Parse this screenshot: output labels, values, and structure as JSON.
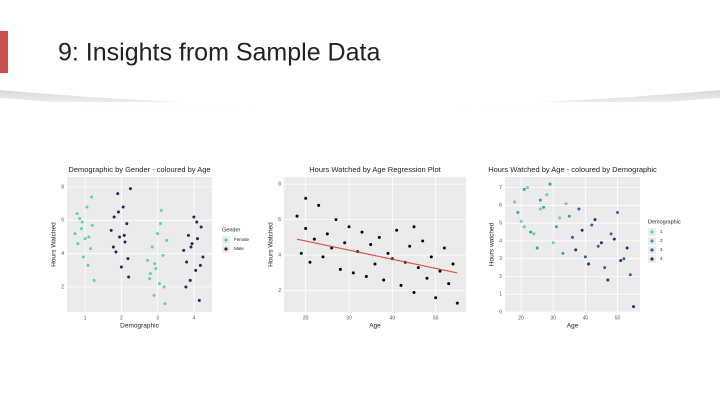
{
  "slide": {
    "title": "9: Insights from Sample Data"
  },
  "chart_data": [
    {
      "type": "scatter",
      "title": "Demographic by Gender - coloured by Age",
      "xlabel": "Demographic",
      "ylabel": "Hours Watched",
      "xlim": [
        0.5,
        4.5
      ],
      "xticks": [
        1,
        2,
        3,
        4
      ],
      "ylim": [
        0.5,
        8.6
      ],
      "yticks": [
        2,
        4,
        6,
        8
      ],
      "grid": true,
      "legend_title": "Gender",
      "series": [
        {
          "name": "Female",
          "color": "#5fd0a8",
          "x": [
            0.72,
            0.8,
            0.85,
            0.9,
            0.95,
            1.0,
            1.05,
            1.1,
            1.15,
            1.2,
            1.25,
            0.78,
            0.92,
            1.08,
            1.18,
            2.72,
            2.8,
            2.85,
            2.9,
            2.95,
            3.0,
            3.05,
            3.1,
            3.15,
            3.2,
            3.25,
            2.78,
            2.92,
            3.08,
            3.18
          ],
          "values": [
            5.2,
            4.6,
            6.1,
            5.5,
            3.8,
            4.9,
            6.8,
            5.0,
            4.3,
            5.7,
            2.4,
            6.4,
            5.9,
            3.3,
            7.4,
            3.6,
            2.8,
            4.4,
            1.5,
            3.1,
            5.2,
            2.2,
            6.6,
            3.9,
            1.0,
            4.8,
            2.5,
            3.4,
            5.8,
            2.0
          ]
        },
        {
          "name": "Male",
          "color": "#2e2150",
          "x": [
            1.72,
            1.8,
            1.85,
            1.9,
            1.95,
            2.0,
            2.05,
            2.1,
            2.15,
            2.2,
            2.25,
            1.78,
            1.92,
            2.08,
            2.18,
            3.72,
            3.8,
            3.85,
            3.9,
            3.95,
            4.0,
            4.05,
            4.1,
            4.15,
            4.2,
            4.25,
            3.78,
            3.92,
            4.08,
            4.18
          ],
          "values": [
            5.4,
            6.2,
            4.1,
            7.6,
            5.0,
            3.2,
            6.8,
            4.7,
            5.8,
            2.6,
            7.9,
            4.4,
            6.5,
            5.1,
            3.7,
            4.2,
            3.5,
            5.1,
            2.4,
            4.6,
            6.2,
            3.0,
            4.9,
            1.2,
            5.6,
            3.8,
            2.0,
            4.4,
            5.9,
            3.3
          ]
        }
      ]
    },
    {
      "type": "scatter",
      "title": "Hours Watched by Age Regression Plot",
      "xlabel": "Age",
      "ylabel": "Hours Watched",
      "xlim": [
        15,
        57
      ],
      "xticks": [
        20,
        30,
        40,
        50
      ],
      "ylim": [
        0.8,
        8.4
      ],
      "yticks": [
        2,
        4,
        6,
        8
      ],
      "grid": true,
      "regression": {
        "color": "#e0504a",
        "x": [
          18,
          55
        ],
        "y": [
          4.9,
          3.0
        ]
      },
      "series": [
        {
          "name": "Hours",
          "color": "#000000",
          "x": [
            18,
            19,
            20,
            21,
            22,
            23,
            24,
            25,
            26,
            27,
            28,
            29,
            30,
            31,
            32,
            33,
            34,
            35,
            36,
            37,
            38,
            39,
            40,
            41,
            42,
            43,
            44,
            45,
            46,
            47,
            48,
            49,
            50,
            51,
            52,
            53,
            54,
            55,
            20,
            45
          ],
          "values": [
            6.2,
            4.1,
            5.5,
            3.6,
            4.9,
            6.8,
            3.9,
            5.2,
            4.4,
            6.0,
            3.2,
            4.7,
            5.6,
            3.0,
            4.2,
            5.3,
            2.8,
            4.6,
            3.5,
            5.0,
            2.6,
            4.1,
            3.8,
            5.4,
            2.3,
            3.6,
            4.5,
            1.9,
            3.3,
            4.8,
            2.7,
            3.9,
            1.6,
            3.1,
            4.4,
            2.4,
            3.5,
            1.3,
            7.2,
            5.6
          ]
        }
      ]
    },
    {
      "type": "scatter",
      "title": "Hours Watched by Age - coloured by Demographic",
      "xlabel": "Age",
      "ylabel": "Hours watched",
      "xlim": [
        15,
        57
      ],
      "xticks": [
        20,
        30,
        40,
        50
      ],
      "ylim": [
        0,
        7.6
      ],
      "yticks": [
        0,
        1,
        2,
        3,
        4,
        5,
        6,
        7
      ],
      "grid": true,
      "legend_title": "Demographic",
      "series": [
        {
          "name": "1",
          "color": "#5fd0b0",
          "x": [
            18,
            20,
            22,
            24,
            26,
            28,
            30,
            32,
            34,
            21
          ],
          "values": [
            6.2,
            5.1,
            7.0,
            4.4,
            5.8,
            6.6,
            3.9,
            5.3,
            6.1,
            4.8
          ]
        },
        {
          "name": "2",
          "color": "#3a9faa",
          "x": [
            19,
            21,
            23,
            25,
            27,
            29,
            31,
            33,
            35,
            26
          ],
          "values": [
            5.6,
            6.9,
            4.5,
            3.6,
            5.9,
            7.2,
            4.8,
            3.3,
            5.4,
            6.3
          ]
        },
        {
          "name": "3",
          "color": "#3d5f9e",
          "x": [
            36,
            38,
            40,
            42,
            44,
            46,
            48,
            50,
            52,
            54
          ],
          "values": [
            4.2,
            5.8,
            3.1,
            4.9,
            3.7,
            2.5,
            4.4,
            5.6,
            3.0,
            2.1
          ]
        },
        {
          "name": "4",
          "color": "#2a2f6a",
          "x": [
            37,
            39,
            41,
            43,
            45,
            47,
            49,
            51,
            53,
            55
          ],
          "values": [
            3.5,
            4.6,
            2.7,
            5.2,
            3.9,
            1.8,
            4.1,
            2.9,
            3.6,
            0.3
          ]
        }
      ]
    }
  ]
}
